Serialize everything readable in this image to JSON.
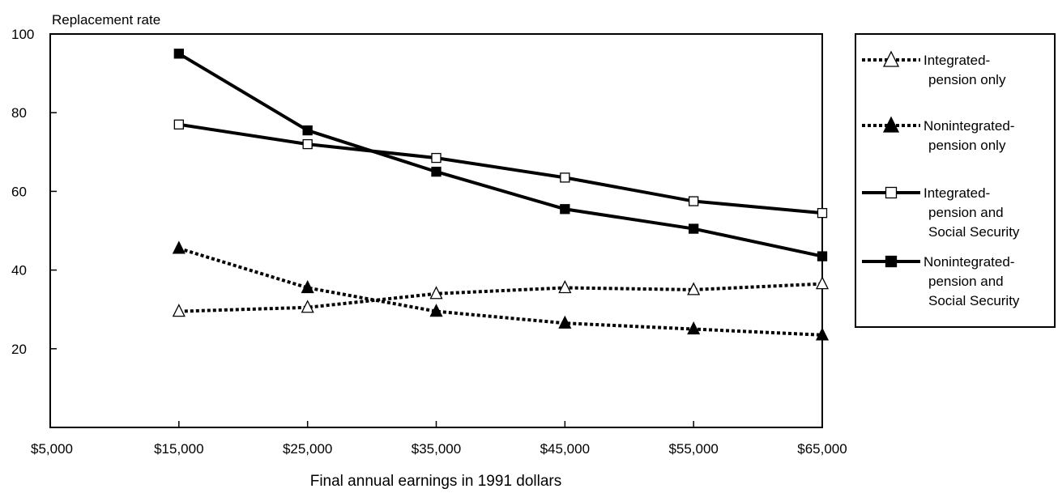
{
  "chart_data": {
    "type": "line",
    "title": "",
    "ylabel": "Replacement rate",
    "xlabel": "Final annual earnings in 1991 dollars",
    "x": [
      5000,
      15000,
      25000,
      35000,
      45000,
      55000,
      65000
    ],
    "x_tick_labels": [
      "$5,000",
      "$15,000",
      "$25,000",
      "$35,000",
      "$45,000",
      "$55,000",
      "$65,000"
    ],
    "y_ticks": [
      20,
      40,
      60,
      80,
      100
    ],
    "xlim": [
      5000,
      65000
    ],
    "ylim": [
      0,
      100
    ],
    "grid": false,
    "legend_position": "right",
    "series": [
      {
        "name": "Integrated-pension only",
        "legend_lines": [
          "Integrated-",
          "pension only"
        ],
        "x": [
          15000,
          25000,
          35000,
          45000,
          55000,
          65000
        ],
        "values": [
          29.5,
          30.5,
          34,
          35.5,
          35,
          36.5
        ],
        "line_style": "dotted",
        "marker": "triangle-open"
      },
      {
        "name": "Nonintegrated-pension only",
        "legend_lines": [
          "Nonintegrated-",
          "pension only"
        ],
        "x": [
          15000,
          25000,
          35000,
          45000,
          55000,
          65000
        ],
        "values": [
          45.5,
          35.5,
          29.5,
          26.5,
          25,
          23.5
        ],
        "line_style": "dotted",
        "marker": "triangle-filled"
      },
      {
        "name": "Integrated-pension and Social Security",
        "legend_lines": [
          "Integrated-",
          "pension and",
          "Social Security"
        ],
        "x": [
          15000,
          25000,
          35000,
          45000,
          55000,
          65000
        ],
        "values": [
          77,
          72,
          68.5,
          63.5,
          57.5,
          54.5
        ],
        "line_style": "solid",
        "marker": "square-open"
      },
      {
        "name": "Nonintegrated-pension and Social Security",
        "legend_lines": [
          "Nonintegrated-",
          "pension and",
          "Social Security"
        ],
        "x": [
          15000,
          25000,
          35000,
          45000,
          55000,
          65000
        ],
        "values": [
          95,
          75.5,
          65,
          55.5,
          50.5,
          43.5
        ],
        "line_style": "solid",
        "marker": "square-filled"
      }
    ]
  }
}
